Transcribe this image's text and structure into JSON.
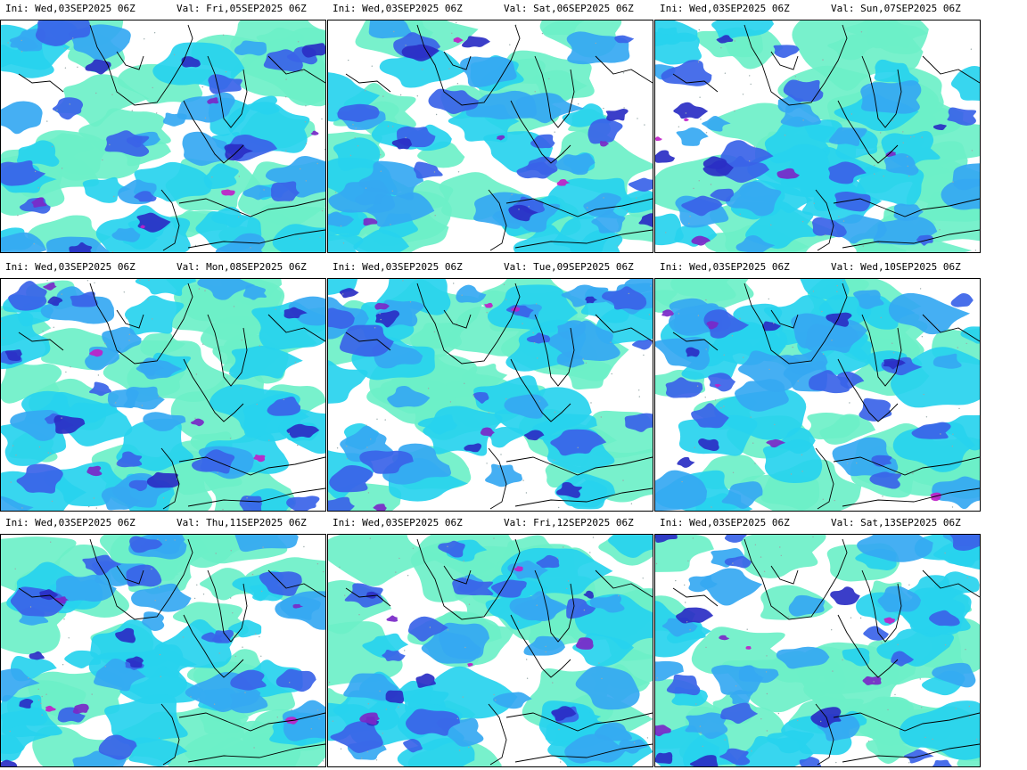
{
  "colors": {
    "light": "#6cf0c8",
    "cyan": "#27d3ee",
    "sky": "#35a8f2",
    "blue": "#3a63e8",
    "dark": "#2a2ec4",
    "purple": "#7a28c8",
    "magenta": "#c020c8"
  },
  "panels": [
    {
      "ini": "Ini: Wed,03SEP2025 06Z",
      "val": "Val: Fri,05SEP2025 06Z"
    },
    {
      "ini": "Ini: Wed,03SEP2025 06Z",
      "val": "Val: Sat,06SEP2025 06Z"
    },
    {
      "ini": "Ini: Wed,03SEP2025 06Z",
      "val": "Val: Sun,07SEP2025 06Z"
    },
    {
      "ini": "Ini: Wed,03SEP2025 06Z",
      "val": "Val: Mon,08SEP2025 06Z"
    },
    {
      "ini": "Ini: Wed,03SEP2025 06Z",
      "val": "Val: Tue,09SEP2025 06Z"
    },
    {
      "ini": "Ini: Wed,03SEP2025 06Z",
      "val": "Val: Wed,10SEP2025 06Z"
    },
    {
      "ini": "Ini: Wed,03SEP2025 06Z",
      "val": "Val: Thu,11SEP2025 06Z"
    },
    {
      "ini": "Ini: Wed,03SEP2025 06Z",
      "val": "Val: Fri,12SEP2025 06Z"
    },
    {
      "ini": "Ini: Wed,03SEP2025 06Z",
      "val": "Val: Sat,13SEP2025 06Z"
    }
  ]
}
